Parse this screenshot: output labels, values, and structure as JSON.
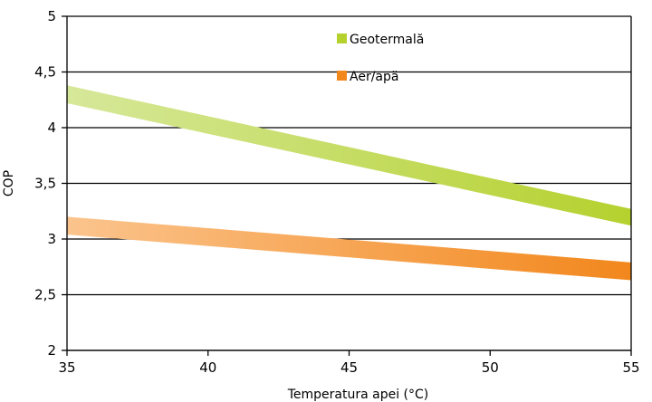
{
  "chart_data": {
    "type": "area",
    "xlabel": "Temperatura apei (°C)",
    "ylabel": "COP",
    "xlim": [
      35,
      55
    ],
    "ylim": [
      2,
      5
    ],
    "x_ticks": [
      "35",
      "40",
      "45",
      "50",
      "55"
    ],
    "y_ticks": [
      "2",
      "2,5",
      "3",
      "3,5",
      "4",
      "4,5",
      "5"
    ],
    "grid": "horizontal",
    "legend_position": "top-center",
    "series": [
      {
        "name": "Geotermală",
        "x": [
          35,
          55
        ],
        "upper": [
          4.38,
          3.27
        ],
        "lower": [
          4.22,
          3.12
        ],
        "color_start": "#d6e89a",
        "color_end": "#b5d12e"
      },
      {
        "name": "Aer/apă",
        "x": [
          35,
          55
        ],
        "upper": [
          3.2,
          2.79
        ],
        "lower": [
          3.04,
          2.63
        ],
        "color_start": "#fbc48d",
        "color_end": "#f2871c"
      }
    ]
  }
}
